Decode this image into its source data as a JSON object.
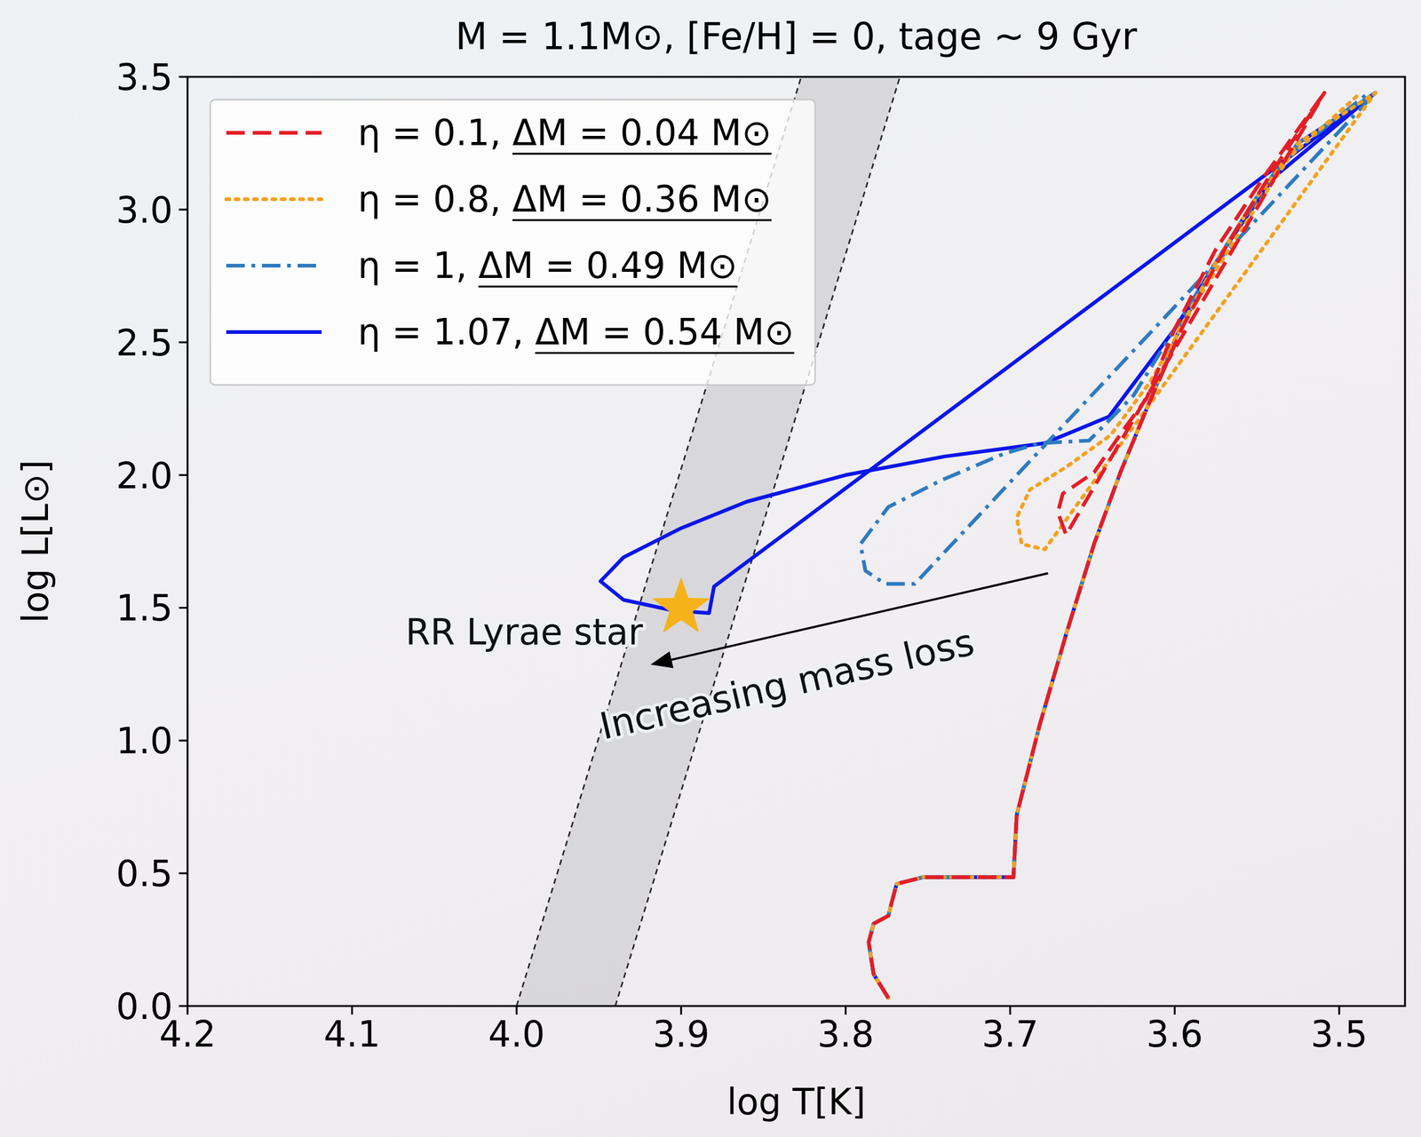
{
  "chart_data": {
    "type": "line",
    "title": "M = 1.1M⊙, [Fe/H] = 0, tage ~ 9 Gyr",
    "x_label": "log T[K]",
    "y_label": "log L[L⊙]",
    "xlim": [
      4.2,
      3.46
    ],
    "ylim": [
      0,
      3.5
    ],
    "xticks": [
      4.2,
      4.1,
      {
        "value": 4,
        "label": "4.0"
      },
      3.9,
      3.8,
      3.7,
      3.6,
      3.5
    ],
    "yticks": [
      {
        "value": 0,
        "label": "0.0"
      },
      0.5,
      {
        "value": 1,
        "label": "1.0"
      },
      1.5,
      {
        "value": 2,
        "label": "2.0"
      },
      2.5,
      {
        "value": 3,
        "label": "3.0"
      },
      3.5
    ],
    "grid": false,
    "legend": "upper left",
    "series": [
      {
        "name": "η = 0.1, ΔM = 0.04 M⊙",
        "color": "#e41e26",
        "line_style": "dashed",
        "x": [
          3.774,
          3.783,
          3.786,
          3.783,
          3.774,
          3.772,
          3.769,
          3.753,
          3.698,
          3.696,
          3.682,
          3.666,
          3.649,
          3.633,
          3.617,
          3.595,
          3.568,
          3.541,
          3.509,
          3.666,
          3.671,
          3.668,
          3.649,
          3.63,
          3.617,
          3.6,
          3.575,
          3.545,
          3.509
        ],
        "y": [
          0.03,
          0.12,
          0.24,
          0.31,
          0.34,
          0.39,
          0.46,
          0.485,
          0.485,
          0.72,
          1.06,
          1.4,
          1.74,
          2.01,
          2.25,
          2.56,
          2.87,
          3.14,
          3.44,
          1.775,
          1.86,
          1.93,
          2.01,
          2.18,
          2.29,
          2.55,
          2.85,
          3.13,
          3.44
        ]
      },
      {
        "name": "η = 0.8, ΔM = 0.36 M⊙",
        "color": "#f2a21f",
        "line_style": "dotted",
        "x": [
          3.774,
          3.783,
          3.786,
          3.783,
          3.774,
          3.772,
          3.769,
          3.753,
          3.698,
          3.696,
          3.682,
          3.666,
          3.649,
          3.633,
          3.617,
          3.597,
          3.575,
          3.552,
          3.525,
          3.478,
          3.679,
          3.693,
          3.696,
          3.688,
          3.666,
          3.639,
          3.615,
          3.59,
          3.56,
          3.53,
          3.487
        ],
        "y": [
          0.03,
          0.12,
          0.24,
          0.31,
          0.34,
          0.39,
          0.46,
          0.485,
          0.485,
          0.72,
          1.06,
          1.4,
          1.74,
          2.01,
          2.25,
          2.55,
          2.8,
          3.03,
          3.25,
          3.44,
          1.72,
          1.74,
          1.84,
          1.945,
          2.03,
          2.15,
          2.35,
          2.62,
          2.92,
          3.2,
          3.44
        ]
      },
      {
        "name": "η = 1, ΔM = 0.49 M⊙",
        "color": "#2f7bbf",
        "line_style": "dashdot",
        "x": [
          3.774,
          3.783,
          3.786,
          3.783,
          3.774,
          3.772,
          3.769,
          3.753,
          3.698,
          3.696,
          3.682,
          3.666,
          3.649,
          3.633,
          3.617,
          3.597,
          3.575,
          3.552,
          3.525,
          3.478,
          3.758,
          3.776,
          3.788,
          3.791,
          3.774,
          3.742,
          3.704,
          3.682,
          3.652,
          3.625,
          3.595,
          3.565,
          3.535,
          3.482
        ],
        "y": [
          0.03,
          0.12,
          0.24,
          0.31,
          0.34,
          0.39,
          0.46,
          0.485,
          0.485,
          0.72,
          1.06,
          1.4,
          1.74,
          2.01,
          2.25,
          2.55,
          2.8,
          3.03,
          3.25,
          3.44,
          1.59,
          1.59,
          1.64,
          1.74,
          1.88,
          1.98,
          2.08,
          2.12,
          2.13,
          2.3,
          2.6,
          2.9,
          3.18,
          3.44
        ]
      },
      {
        "name": "η = 1.07, ΔM = 0.54 M⊙",
        "color": "#0b16e8",
        "line_style": "solid",
        "x": [
          3.774,
          3.783,
          3.786,
          3.783,
          3.774,
          3.772,
          3.769,
          3.753,
          3.698,
          3.696,
          3.682,
          3.666,
          3.649,
          3.633,
          3.617,
          3.597,
          3.575,
          3.552,
          3.525,
          3.478,
          3.88,
          3.883,
          3.905,
          3.935,
          3.949,
          3.935,
          3.9,
          3.86,
          3.8,
          3.74,
          3.679,
          3.64,
          3.6,
          3.57,
          3.54,
          3.478
        ],
        "y": [
          0.03,
          0.12,
          0.24,
          0.31,
          0.34,
          0.39,
          0.46,
          0.485,
          0.485,
          0.72,
          1.06,
          1.4,
          1.74,
          2.01,
          2.25,
          2.55,
          2.8,
          3.03,
          3.25,
          3.44,
          1.58,
          1.48,
          1.49,
          1.53,
          1.6,
          1.69,
          1.8,
          1.9,
          2.0,
          2.07,
          2.12,
          2.22,
          2.55,
          2.85,
          3.12,
          3.44
        ]
      }
    ],
    "instability_strip": {
      "edges": [
        {
          "x": [
            4.0,
            3.827
          ],
          "y": [
            0,
            3.5
          ]
        },
        {
          "x": [
            3.94,
            3.767
          ],
          "y": [
            0,
            3.5
          ]
        }
      ]
    },
    "annotations": [
      {
        "text": "RR Lyrae star",
        "x": 3.9,
        "y": 1.5,
        "marker": "star",
        "color": "#f5b21b"
      },
      {
        "text": "Increasing mass loss",
        "x": [
          3.677,
          3.916
        ],
        "y": [
          1.63,
          1.29
        ]
      }
    ]
  }
}
